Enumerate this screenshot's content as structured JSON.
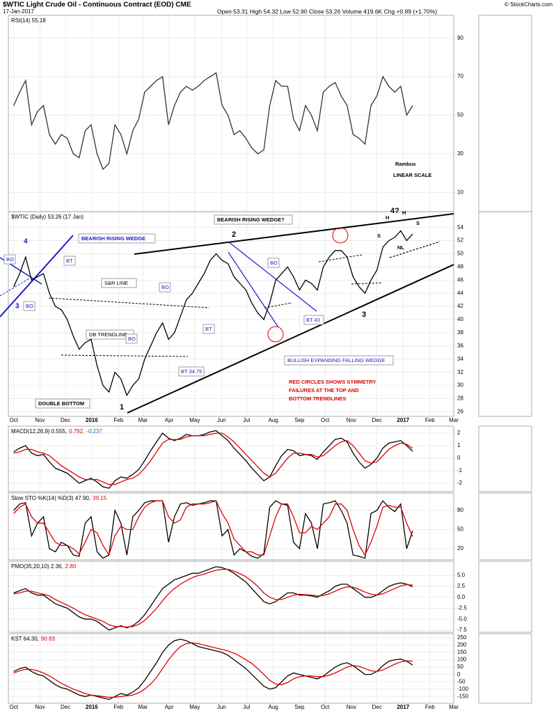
{
  "chart_data": {
    "type": "stock_panels",
    "title": "$WTIC Light Crude Oil - Continuous Contract (EOD) CME",
    "date": "17-Jan-2017",
    "quote": "Open 53.31  High 54.32  Low 52.90  Close 53.26  Volume 419.6K  Chg +0.89 (+1.70%)",
    "credit": "© StockCharts.com",
    "x": [
      0,
      1,
      2,
      3,
      4,
      5,
      6,
      7,
      8,
      9,
      10,
      11,
      12,
      13,
      14,
      15,
      16,
      17,
      18,
      19,
      20,
      21,
      22,
      23,
      24,
      25,
      26,
      27,
      28,
      29,
      30,
      31,
      32,
      33,
      34,
      35,
      36,
      37,
      38,
      39,
      40,
      41,
      42,
      43,
      44,
      45,
      46,
      47,
      48,
      49,
      50,
      51,
      52,
      53,
      54,
      55,
      56,
      57,
      58,
      59,
      60,
      61,
      62,
      63,
      64,
      65,
      66,
      67
    ],
    "xlim": [
      -0.9,
      73.9
    ],
    "xticks": [
      {
        "value": 0,
        "label": "Oct"
      },
      {
        "value": 4.4,
        "label": "Nov"
      },
      {
        "value": 8.7,
        "label": "Dec"
      },
      {
        "value": 13.1,
        "label": "2016"
      },
      {
        "value": 17.6,
        "label": "Feb"
      },
      {
        "value": 21.7,
        "label": "Mar"
      },
      {
        "value": 26.1,
        "label": "Apr"
      },
      {
        "value": 30.4,
        "label": "May"
      },
      {
        "value": 34.9,
        "label": "Jun"
      },
      {
        "value": 39.1,
        "label": "Jul"
      },
      {
        "value": 43.6,
        "label": "Aug"
      },
      {
        "value": 48,
        "label": "Sep"
      },
      {
        "value": 52.3,
        "label": "Oct"
      },
      {
        "value": 56.7,
        "label": "Nov"
      },
      {
        "value": 61,
        "label": "Dec"
      },
      {
        "value": 65.4,
        "label": "2017"
      },
      {
        "value": 69.9,
        "label": "Feb"
      },
      {
        "value": 73.9,
        "label": "Mar"
      }
    ],
    "grid": true,
    "panels": [
      {
        "type": "line",
        "legend": [
          {
            "text": "RSI(14) 55.18",
            "color": "#000000"
          }
        ],
        "ylim": [
          0,
          101.8
        ],
        "yticks": [
          10,
          30,
          50,
          70,
          90
        ],
        "series": [
          {
            "color": "#333333",
            "values": [
              55,
              62,
              68,
              45,
              52,
              55,
              40,
              35,
              40,
              38,
              30,
              28,
              42,
              45,
              30,
              22,
              25,
              45,
              40,
              30,
              42,
              48,
              62,
              65,
              68,
              70,
              45,
              55,
              62,
              65,
              63,
              65,
              68,
              70,
              72,
              55,
              50,
              40,
              42,
              38,
              33,
              30,
              32,
              55,
              68,
              65,
              65,
              48,
              42,
              55,
              50,
              42,
              62,
              65,
              67,
              60,
              55,
              40,
              38,
              35,
              55,
              60,
              70,
              65,
              62,
              65,
              50,
              55
            ]
          }
        ]
      },
      {
        "type": "line",
        "legend": [
          {
            "text": "$WTIC (Daily) 53.26 (17 Jan)",
            "color": "#000000"
          }
        ],
        "ylim": [
          25.3,
          56.4
        ],
        "yticks": [
          26,
          28,
          30,
          32,
          34,
          36,
          38,
          40,
          42,
          44,
          46,
          48,
          50,
          52,
          54
        ],
        "series": [
          {
            "color": "#000000",
            "values": [
              45,
              47,
              49.5,
              46,
              46.5,
              47,
              44,
              42,
              41.5,
              40,
              37.5,
              35.5,
              36.5,
              37,
              33,
              30,
              29,
              32,
              31,
              28.5,
              30,
              31,
              34,
              36,
              38,
              39.5,
              37,
              38,
              40.5,
              43,
              44,
              45.5,
              47,
              49,
              50,
              49,
              48.5,
              46.5,
              45.5,
              44.5,
              42.5,
              41,
              40,
              42.5,
              46,
              47,
              48,
              46.5,
              44.5,
              46,
              45.5,
              44.5,
              48,
              49.5,
              50.5,
              50.5,
              49.5,
              46.5,
              45,
              44,
              46,
              47.5,
              51,
              52,
              52.5,
              53.5,
              52,
              53
            ]
          }
        ]
      },
      {
        "type": "line",
        "legend": [
          {
            "text": "MACD(12,26,9) 0.555,",
            "color": "#000000"
          },
          {
            "text": "0.792,",
            "color": "#e00000"
          },
          {
            "text": "-0.237",
            "color": "#1a6fc4"
          }
        ],
        "ylim": [
          -2.67,
          2.56
        ],
        "yticks": [
          -2,
          -1,
          0,
          1,
          2
        ],
        "series": [
          {
            "color": "#000000",
            "values": [
              0.5,
              0.8,
              1,
              0.4,
              0.2,
              0.3,
              -0.3,
              -0.8,
              -1,
              -1.2,
              -1.6,
              -2,
              -1.8,
              -1.6,
              -1.9,
              -2.3,
              -2.4,
              -1.8,
              -1.5,
              -1.6,
              -1.3,
              -0.9,
              -0.2,
              0.6,
              1.3,
              2,
              1.6,
              1.4,
              1.6,
              1.9,
              1.8,
              1.8,
              1.9,
              2.1,
              2.2,
              1.8,
              1.4,
              0.8,
              0.3,
              -0.2,
              -0.8,
              -1.3,
              -1.8,
              -1.5,
              -0.6,
              0.2,
              0.7,
              0.6,
              0.2,
              0.3,
              0.2,
              -0.1,
              0.5,
              1,
              1.5,
              1.6,
              1.3,
              0.4,
              -0.3,
              -0.8,
              -0.5,
              0,
              0.8,
              1.2,
              1.3,
              1.4,
              1,
              0.55
            ]
          },
          {
            "color": "#e00000",
            "values": [
              0.4,
              0.5,
              0.7,
              0.7,
              0.5,
              0.4,
              0.2,
              -0.2,
              -0.6,
              -0.9,
              -1.2,
              -1.5,
              -1.7,
              -1.7,
              -1.7,
              -1.9,
              -2.1,
              -2.1,
              -1.9,
              -1.7,
              -1.6,
              -1.3,
              -0.8,
              -0.2,
              0.5,
              1.2,
              1.5,
              1.5,
              1.5,
              1.7,
              1.8,
              1.8,
              1.8,
              1.9,
              2,
              2,
              1.7,
              1.3,
              0.8,
              0.3,
              -0.2,
              -0.7,
              -1.2,
              -1.5,
              -1.2,
              -0.6,
              0,
              0.4,
              0.4,
              0.3,
              0.3,
              0.1,
              0.2,
              0.6,
              1,
              1.3,
              1.4,
              1,
              0.4,
              -0.2,
              -0.4,
              -0.3,
              0.2,
              0.7,
              1,
              1.2,
              1.1,
              0.79
            ]
          }
        ]
      },
      {
        "type": "line",
        "legend": [
          {
            "text": "Slow STO %K(14) %D(3) 47.90,",
            "color": "#000000"
          },
          {
            "text": "39.15",
            "color": "#e00000"
          }
        ],
        "ylim": [
          2.5,
          107.3
        ],
        "yticks": [
          20,
          50,
          80
        ],
        "series": [
          {
            "color": "#000000",
            "values": [
              80,
              90,
              92,
              40,
              60,
              70,
              20,
              15,
              30,
              25,
              10,
              8,
              60,
              70,
              15,
              5,
              10,
              80,
              60,
              10,
              70,
              80,
              92,
              95,
              95,
              95,
              30,
              70,
              90,
              92,
              88,
              90,
              92,
              95,
              95,
              40,
              50,
              10,
              20,
              15,
              8,
              5,
              12,
              85,
              95,
              90,
              88,
              30,
              20,
              75,
              60,
              20,
              90,
              92,
              95,
              80,
              60,
              10,
              8,
              5,
              75,
              80,
              95,
              85,
              78,
              90,
              20,
              48
            ]
          },
          {
            "color": "#e00000",
            "values": [
              75,
              85,
              90,
              70,
              60,
              60,
              45,
              30,
              25,
              25,
              20,
              12,
              30,
              50,
              45,
              25,
              10,
              40,
              55,
              50,
              50,
              70,
              85,
              92,
              95,
              95,
              70,
              60,
              65,
              85,
              90,
              90,
              90,
              92,
              95,
              75,
              60,
              35,
              25,
              15,
              15,
              10,
              10,
              40,
              70,
              90,
              90,
              70,
              45,
              45,
              55,
              50,
              60,
              70,
              90,
              90,
              80,
              50,
              25,
              10,
              30,
              55,
              85,
              88,
              85,
              85,
              60,
              39
            ]
          }
        ]
      },
      {
        "type": "line",
        "legend": [
          {
            "text": "PMO(35,20,10) 2.36,",
            "color": "#000000"
          },
          {
            "text": "2.80",
            "color": "#e00000"
          }
        ],
        "ylim": [
          -8.0,
          8.26
        ],
        "yticks": [
          {
            "value": 5,
            "label": "5.0"
          },
          2.5,
          {
            "value": 0,
            "label": "0.0"
          },
          -2.5,
          {
            "value": -5,
            "label": "-5.0"
          },
          -7.5
        ],
        "series": [
          {
            "color": "#000000",
            "values": [
              1,
              1.5,
              2,
              1,
              0.5,
              0.5,
              -0.5,
              -1.5,
              -2,
              -2.5,
              -3.5,
              -4.5,
              -5,
              -5,
              -5.5,
              -6.5,
              -7.5,
              -7,
              -6.5,
              -7,
              -6.5,
              -5.5,
              -4,
              -2,
              0,
              2,
              3,
              4,
              4.5,
              5,
              5.5,
              5.5,
              6,
              6.5,
              7,
              6.8,
              6.3,
              5.5,
              4.5,
              3.5,
              2,
              0.5,
              -1,
              -1.5,
              -1,
              0,
              1,
              1,
              0.5,
              0.5,
              0.3,
              0,
              0.8,
              1.5,
              2.5,
              3,
              3,
              2,
              1,
              0,
              0,
              0.5,
              1.5,
              2.5,
              3,
              3.3,
              3,
              2.4
            ]
          },
          {
            "color": "#e00000",
            "values": [
              0.8,
              1,
              1.4,
              1.4,
              1,
              0.7,
              0.3,
              -0.5,
              -1.2,
              -1.8,
              -2.5,
              -3.3,
              -4,
              -4.5,
              -5,
              -5.5,
              -6.3,
              -6.7,
              -6.7,
              -6.8,
              -6.7,
              -6.2,
              -5.3,
              -4,
              -2.5,
              -0.8,
              0.8,
              2,
              3,
              3.8,
              4.5,
              5,
              5.3,
              5.8,
              6.2,
              6.4,
              6.4,
              6,
              5.4,
              4.7,
              3.7,
              2.5,
              1,
              0,
              -0.5,
              -0.5,
              0,
              0.5,
              0.7,
              0.6,
              0.5,
              0.3,
              0.4,
              0.8,
              1.4,
              2,
              2.4,
              2.3,
              1.8,
              1.2,
              0.7,
              0.5,
              0.8,
              1.4,
              2,
              2.6,
              2.9,
              2.8
            ]
          }
        ]
      },
      {
        "type": "line",
        "legend": [
          {
            "text": "KST 64.30,",
            "color": "#000000"
          },
          {
            "text": "90.83",
            "color": "#e00000"
          }
        ],
        "ylim": [
          -196,
          278
        ],
        "yticks": [
          -150,
          -100,
          -50,
          0,
          50,
          100,
          150,
          200,
          250
        ],
        "series": [
          {
            "color": "#000000",
            "values": [
              20,
              40,
              50,
              20,
              0,
              -10,
              -40,
              -70,
              -90,
              -100,
              -120,
              -140,
              -150,
              -140,
              -150,
              -160,
              -170,
              -150,
              -130,
              -140,
              -120,
              -90,
              -40,
              20,
              80,
              150,
              200,
              230,
              240,
              230,
              210,
              190,
              180,
              170,
              160,
              150,
              130,
              100,
              70,
              40,
              0,
              -40,
              -80,
              -100,
              -90,
              -50,
              -10,
              10,
              0,
              -10,
              -20,
              -30,
              -10,
              20,
              50,
              70,
              80,
              60,
              30,
              0,
              0,
              20,
              60,
              90,
              100,
              105,
              90,
              64
            ]
          },
          {
            "color": "#e00000",
            "values": [
              10,
              25,
              35,
              35,
              25,
              10,
              -10,
              -35,
              -60,
              -80,
              -100,
              -115,
              -130,
              -140,
              -145,
              -150,
              -155,
              -155,
              -150,
              -145,
              -140,
              -125,
              -100,
              -65,
              -20,
              40,
              100,
              150,
              190,
              210,
              215,
              210,
              200,
              190,
              180,
              170,
              160,
              145,
              125,
              100,
              75,
              40,
              0,
              -40,
              -65,
              -70,
              -55,
              -30,
              -15,
              -10,
              -10,
              -15,
              -15,
              -5,
              10,
              30,
              50,
              60,
              55,
              40,
              25,
              20,
              30,
              50,
              70,
              85,
              92,
              91
            ]
          }
        ]
      }
    ],
    "annotations": [
      "BEARISH RISING WEDGE",
      "BEARISH RISING WEDGE?",
      "S&R LINE",
      "DB TRENDLINE",
      "DOUBLE BOTTOM",
      "BULLISH EXPANDING FALLING WEDGE",
      "RED CIRCLES SHOWS SYMMETRY",
      "FAILURES AT THE TOP AND",
      "BOTTOM TRENDLINES",
      "BO",
      "BO",
      "BO",
      "BO",
      "BO",
      "BT",
      "BT",
      "BT 34.75",
      "BT 43",
      "1",
      "2",
      "3",
      "3",
      "4",
      "4?",
      "H",
      "H",
      "S",
      "S",
      "NL",
      "Rambus",
      "LINEAR SCALE"
    ]
  }
}
